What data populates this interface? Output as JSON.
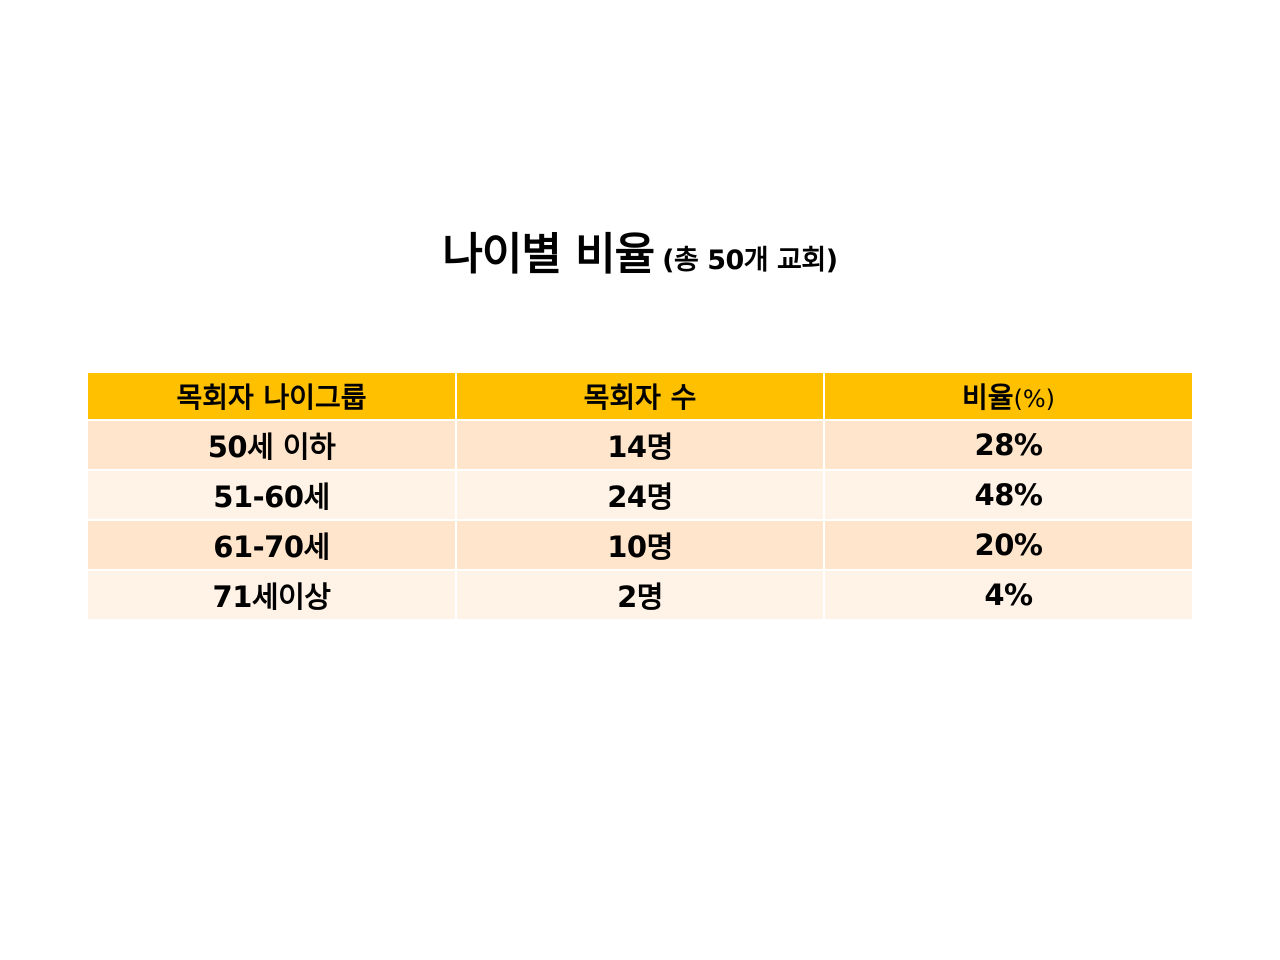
{
  "title": {
    "main": "나이별 비율",
    "sub": "(총 50개 교회)"
  },
  "table": {
    "headers": {
      "group": "목회자 나이그룹",
      "count": "목회자 수",
      "ratio_label": "비율",
      "ratio_unit": "(%)"
    },
    "rows": [
      {
        "group": "50세 이하",
        "count": "14명",
        "ratio": "28%"
      },
      {
        "group": "51-60세",
        "count": "24명",
        "ratio": "48%"
      },
      {
        "group": "61-70세",
        "count": "10명",
        "ratio": "20%"
      },
      {
        "group": "71세이상",
        "count": "2명",
        "ratio": "4%"
      }
    ]
  },
  "colors": {
    "header_bg": "#ffc000",
    "row_odd_bg": "#ffe5cc",
    "row_even_bg": "#fff2e6"
  }
}
